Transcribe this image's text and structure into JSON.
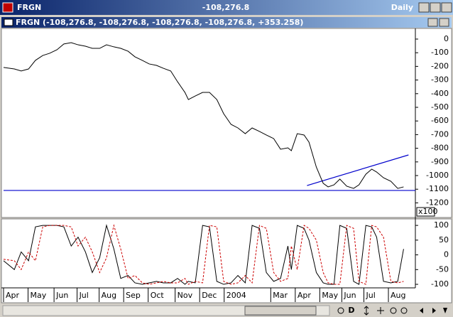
{
  "window": {
    "title": "FRGN",
    "value": "-108,276.8",
    "period": "Daily",
    "pane_title": "FRGN (-108,276.8, -108,276.8, -108,276.8, -108,276.8, +353.258)",
    "scale_label": "x100",
    "toolbar_label": "D"
  },
  "chart_data": [
    {
      "type": "line",
      "xlim": [
        0,
        84
      ],
      "ylim": [
        -1302,
        78
      ],
      "yticks": [
        0,
        -100,
        -200,
        -300,
        -400,
        -500,
        -600,
        -700,
        -800,
        -900,
        -1000,
        -1100,
        -1200
      ],
      "series": [
        {
          "color": "#000000",
          "x": [
            0,
            2.2,
            3.6,
            5.1,
            6.5,
            8,
            9.4,
            10.9,
            12.3,
            13.8,
            15.2,
            16.7,
            18.1,
            19.6,
            21,
            22.5,
            23.9,
            25.4,
            26.8,
            28.3,
            29.7,
            31.2,
            32.6,
            34.1,
            35.5,
            37,
            37.7,
            39.1,
            40.6,
            42,
            43.5,
            44.9,
            46.4,
            47.8,
            49.3,
            50.7,
            52.2,
            53.6,
            55.1,
            56.5,
            58,
            58.7,
            59.9,
            61.3,
            62.3,
            63.8,
            65.2,
            66.2,
            67.4,
            68.6,
            70,
            71.4,
            72.5,
            73.9,
            75.1,
            76.1,
            77.5,
            79,
            80.4,
            81.6
          ],
          "values": [
            -208,
            -219,
            -234,
            -219,
            -156,
            -120,
            -104,
            -78,
            -36,
            -26,
            -42,
            -52,
            -68,
            -68,
            -42,
            -57,
            -68,
            -89,
            -130,
            -156,
            -182,
            -193,
            -214,
            -234,
            -313,
            -391,
            -443,
            -417,
            -391,
            -391,
            -443,
            -547,
            -625,
            -651,
            -693,
            -651,
            -677,
            -703,
            -729,
            -807,
            -797,
            -818,
            -693,
            -703,
            -755,
            -938,
            -1057,
            -1083,
            -1068,
            -1026,
            -1078,
            -1094,
            -1068,
            -990,
            -953,
            -974,
            -1016,
            -1042,
            -1094,
            -1083
          ]
        }
      ],
      "trendlines": [
        {
          "color": "#0000cc",
          "x": [
            61.9,
            82.6
          ],
          "values": [
            -1073,
            -849
          ]
        },
        {
          "color": "#0000cc",
          "x": [
            0,
            84
          ],
          "values": [
            -1109,
            -1109
          ]
        }
      ]
    },
    {
      "type": "line",
      "xlim": [
        0,
        84
      ],
      "ylim": [
        -112,
        122
      ],
      "yticks": [
        100,
        50,
        0,
        -50,
        -100
      ],
      "xticks": [
        {
          "value": 0,
          "label": "Apr"
        },
        {
          "value": 5,
          "label": "May"
        },
        {
          "value": 10.3,
          "label": "Jun"
        },
        {
          "value": 15,
          "label": "Jul"
        },
        {
          "value": 19.5,
          "label": "Aug"
        },
        {
          "value": 24.5,
          "label": "Sep"
        },
        {
          "value": 29.5,
          "label": "Oct"
        },
        {
          "value": 35,
          "label": "Nov"
        },
        {
          "value": 40,
          "label": "Dec"
        },
        {
          "value": 45,
          "label": "2004"
        },
        {
          "value": 54.5,
          "label": "Mar"
        },
        {
          "value": 59.5,
          "label": "Apr"
        },
        {
          "value": 64.5,
          "label": "May"
        },
        {
          "value": 69,
          "label": "Jun"
        },
        {
          "value": 73.5,
          "label": "Jul"
        },
        {
          "value": 78.5,
          "label": "Aug"
        }
      ],
      "series": [
        {
          "color": "#000000",
          "dashed": false,
          "x": [
            0,
            2.2,
            3.6,
            5.1,
            6.5,
            8,
            9.4,
            10.9,
            12.3,
            13.8,
            15.2,
            16.7,
            18.1,
            19.6,
            21,
            22.5,
            23.9,
            25.4,
            26.8,
            28.3,
            29.7,
            31.2,
            32.6,
            34.1,
            35.5,
            37,
            37.7,
            39.1,
            40.6,
            42,
            43.5,
            44.9,
            46.4,
            47.8,
            49.3,
            50.7,
            52.2,
            53.6,
            55.1,
            56.5,
            58,
            58.7,
            59.9,
            61.3,
            62.3,
            63.8,
            65.2,
            66.2,
            67.4,
            68.6,
            70,
            71.4,
            72.5,
            73.9,
            75.1,
            76.1,
            77.5,
            79,
            80.4,
            81.6
          ],
          "values": [
            -20,
            -50,
            10,
            -20,
            95,
            100,
            100,
            100,
            95,
            30,
            60,
            10,
            -60,
            -10,
            100,
            20,
            -80,
            -70,
            -95,
            -100,
            -95,
            -90,
            -95,
            -95,
            -80,
            -100,
            -90,
            -95,
            100,
            95,
            -90,
            -100,
            -95,
            -70,
            -95,
            100,
            90,
            -60,
            -90,
            -80,
            30,
            -50,
            100,
            90,
            50,
            -60,
            -95,
            -100,
            -100,
            100,
            90,
            -90,
            -100,
            100,
            95,
            60,
            -90,
            -95,
            -90,
            20
          ]
        },
        {
          "color": "#cc0000",
          "dashed": true,
          "x": [
            0,
            2.2,
            3.6,
            5.1,
            6.5,
            8,
            9.4,
            10.9,
            12.3,
            13.8,
            15.2,
            16.7,
            18.1,
            19.6,
            21,
            22.5,
            23.9,
            25.4,
            26.8,
            28.3,
            29.7,
            31.2,
            32.6,
            34.1,
            35.5,
            37,
            37.7,
            39.1,
            40.6,
            42,
            43.5,
            44.9,
            46.4,
            47.8,
            49.3,
            50.7,
            52.2,
            53.6,
            55.1,
            56.5,
            58,
            58.7,
            59.9,
            61.3,
            62.3,
            63.8,
            65.2,
            66.2,
            67.4,
            68.6,
            70,
            71.4,
            72.5,
            73.9,
            75.1,
            76.1,
            77.5,
            79,
            80.4,
            81.6
          ],
          "values": [
            -15,
            -20,
            -50,
            10,
            -20,
            95,
            100,
            100,
            100,
            95,
            30,
            60,
            10,
            -60,
            -10,
            100,
            20,
            -80,
            -70,
            -95,
            -100,
            -95,
            -90,
            -95,
            -95,
            -80,
            -100,
            -90,
            -95,
            100,
            95,
            -90,
            -100,
            -95,
            -70,
            -95,
            100,
            90,
            -60,
            -90,
            -80,
            30,
            -50,
            100,
            90,
            50,
            -60,
            -95,
            -100,
            -100,
            100,
            90,
            -90,
            -100,
            100,
            95,
            60,
            -90,
            -95,
            -90
          ]
        }
      ]
    }
  ]
}
